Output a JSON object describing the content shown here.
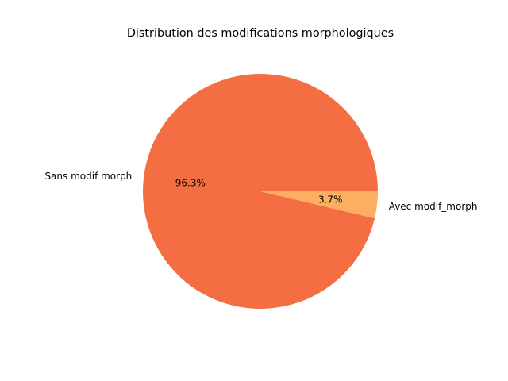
{
  "chart_data": {
    "type": "pie",
    "title": "Distribution des modifications morphologiques",
    "categories": [
      "Sans modif morph",
      "Avec modif_morph"
    ],
    "values": [
      96.3,
      3.7
    ],
    "percent_labels": [
      "96.3%",
      "3.7%"
    ],
    "colors": [
      "#f46d43",
      "#fdae61"
    ],
    "legend": "none"
  }
}
